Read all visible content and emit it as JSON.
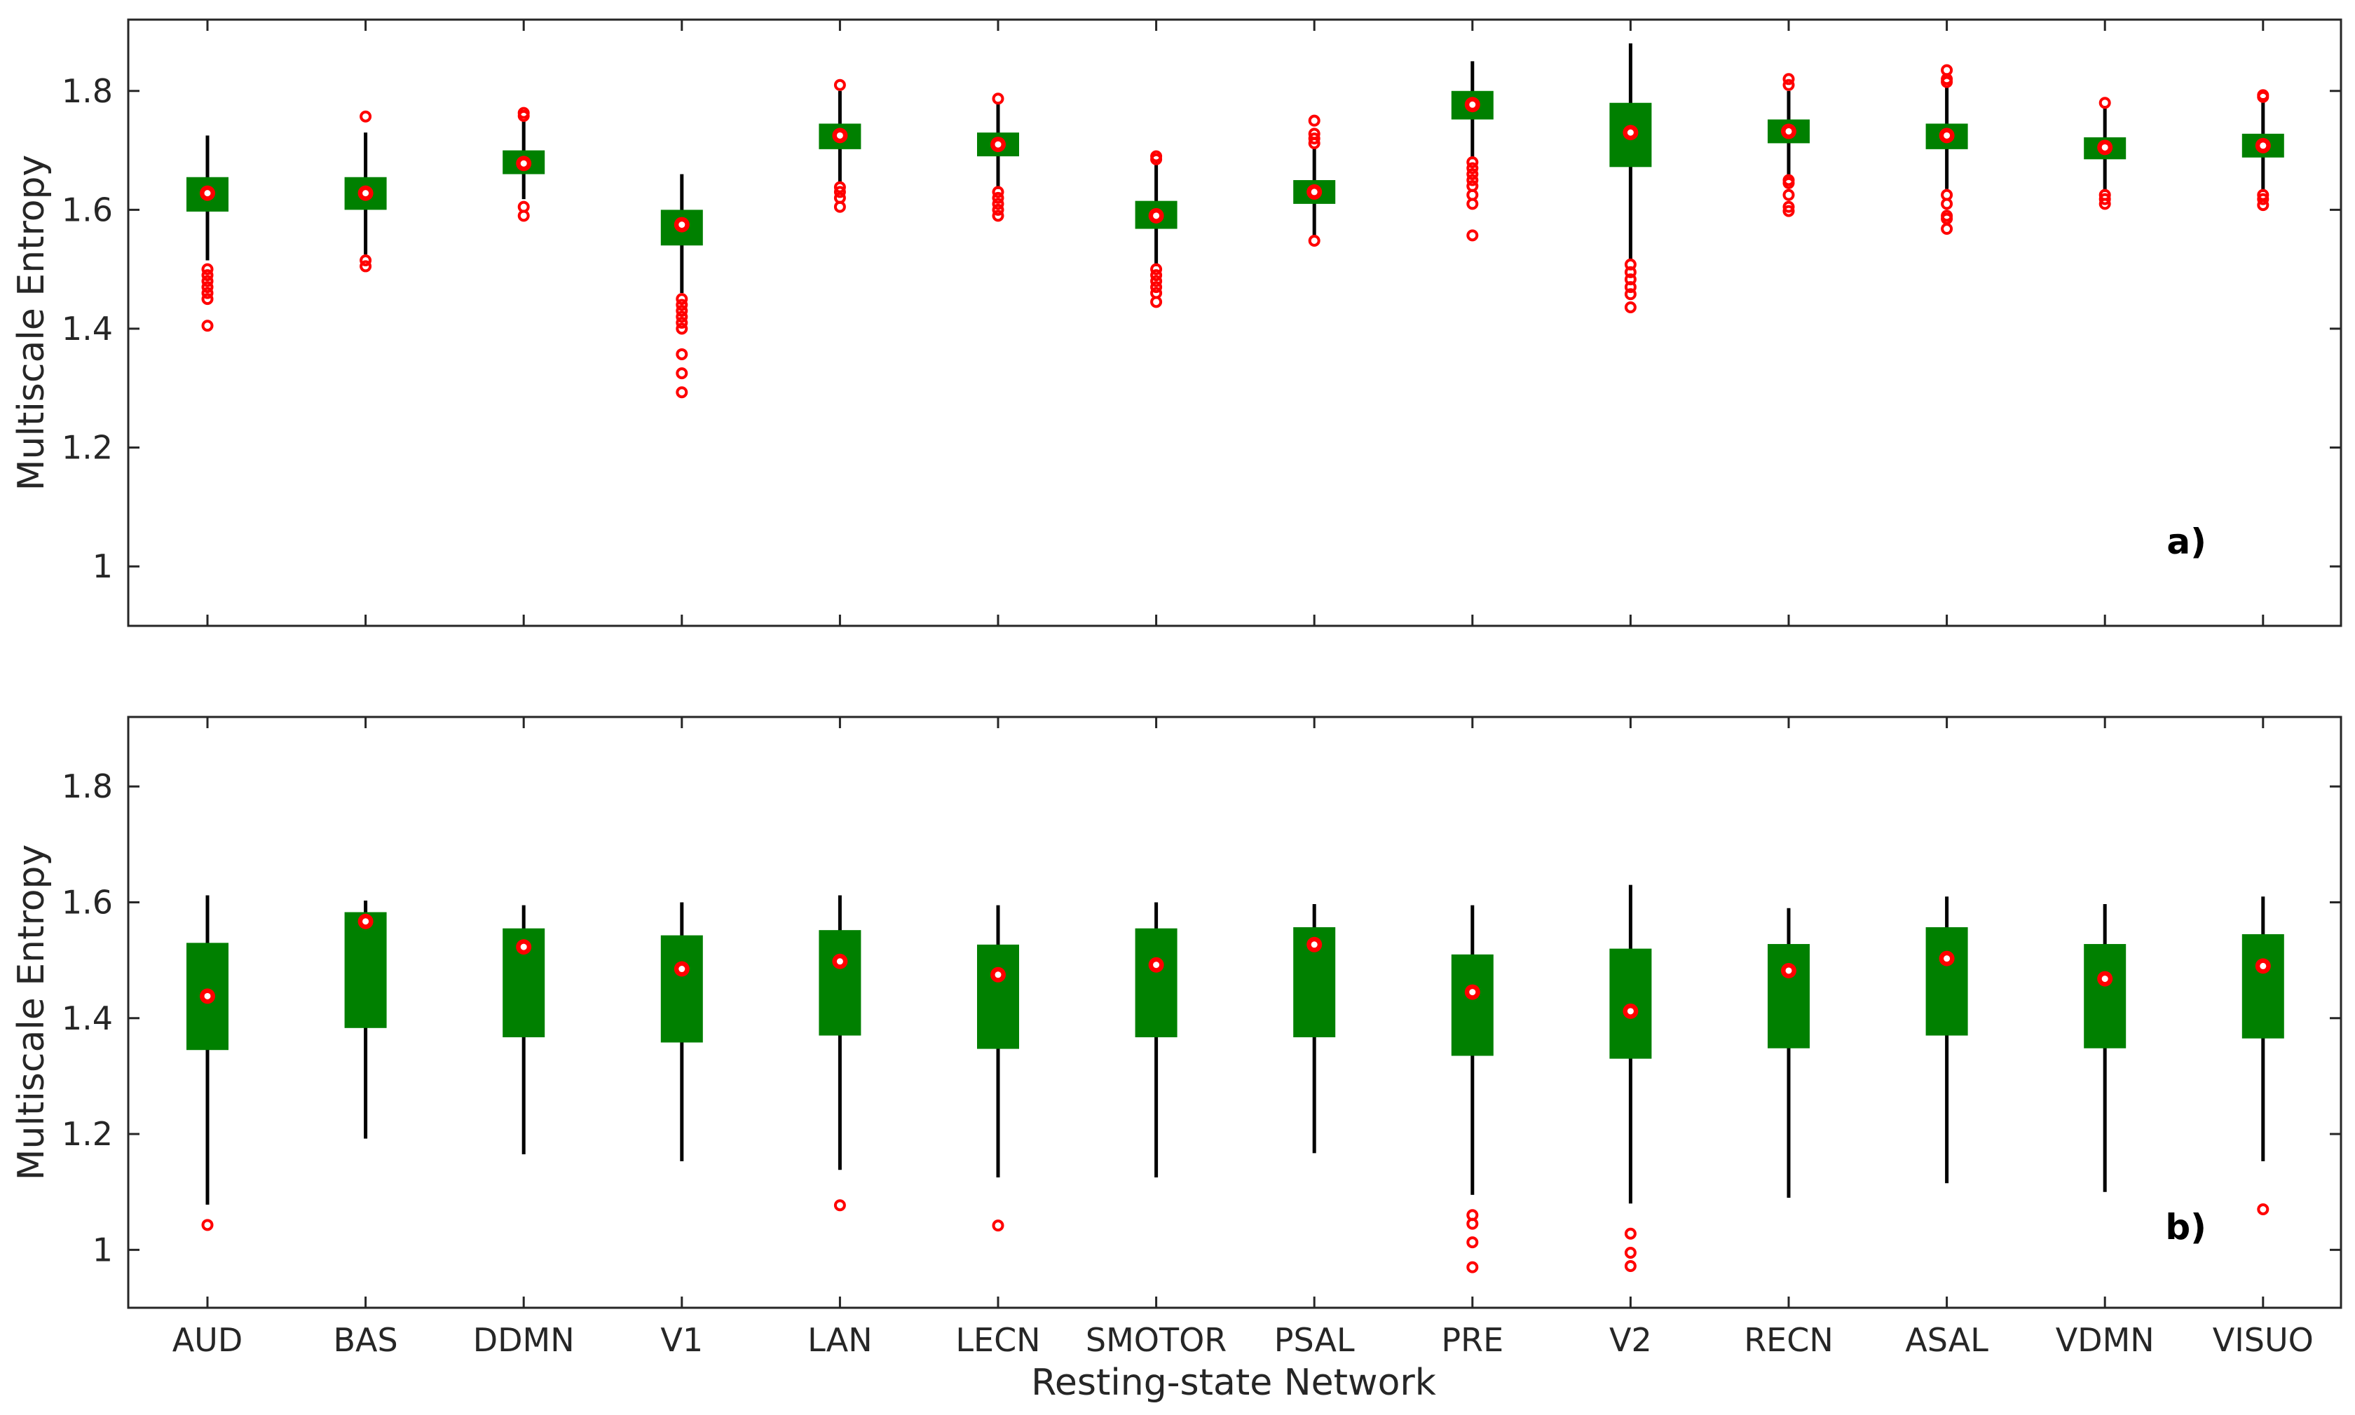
{
  "chart_data": {
    "type": "boxplot",
    "xlabel": "Resting-state Network",
    "ylabel": "Multiscale Entropy",
    "ylim": [
      0.9,
      1.92
    ],
    "yticks": [
      1,
      1.2,
      1.4,
      1.6,
      1.8
    ],
    "ytick_labels": [
      "1",
      "1.2",
      "1.4",
      "1.6",
      "1.8"
    ],
    "categories": [
      "AUD",
      "BAS",
      "DDMN",
      "V1",
      "LAN",
      "LECN",
      "SMOTOR",
      "PSAL",
      "PRE",
      "V2",
      "RECN",
      "ASAL",
      "VDMN",
      "VISUO"
    ],
    "colors": {
      "box": "#008000",
      "whisker": "#000000",
      "outlier": "#ff0000",
      "median_dot": "#ffffff"
    },
    "panels": [
      {
        "label": "a)",
        "boxes": [
          {
            "q1": 1.597,
            "q3": 1.655,
            "median": 1.628,
            "whisker_low": 1.515,
            "whisker_high": 1.725,
            "outliers": [
              1.5,
              1.49,
              1.48,
              1.47,
              1.46,
              1.45,
              1.405
            ]
          },
          {
            "q1": 1.6,
            "q3": 1.655,
            "median": 1.628,
            "whisker_low": 1.525,
            "whisker_high": 1.73,
            "outliers": [
              1.757,
              1.515,
              1.505
            ]
          },
          {
            "q1": 1.66,
            "q3": 1.7,
            "median": 1.678,
            "whisker_low": 1.618,
            "whisker_high": 1.75,
            "outliers": [
              1.763,
              1.758,
              1.605,
              1.59
            ]
          },
          {
            "q1": 1.54,
            "q3": 1.6,
            "median": 1.575,
            "whisker_low": 1.46,
            "whisker_high": 1.66,
            "outliers": [
              1.45,
              1.44,
              1.43,
              1.42,
              1.41,
              1.4,
              1.357,
              1.325,
              1.293
            ]
          },
          {
            "q1": 1.702,
            "q3": 1.745,
            "median": 1.725,
            "whisker_low": 1.645,
            "whisker_high": 1.8,
            "outliers": [
              1.81,
              1.638,
              1.63,
              1.62,
              1.605
            ]
          },
          {
            "q1": 1.69,
            "q3": 1.73,
            "median": 1.71,
            "whisker_low": 1.635,
            "whisker_high": 1.778,
            "outliers": [
              1.787,
              1.63,
              1.62,
              1.61,
              1.6,
              1.59
            ]
          },
          {
            "q1": 1.568,
            "q3": 1.615,
            "median": 1.59,
            "whisker_low": 1.505,
            "whisker_high": 1.68,
            "outliers": [
              1.69,
              1.685,
              1.5,
              1.49,
              1.48,
              1.47,
              1.46,
              1.445
            ]
          },
          {
            "q1": 1.61,
            "q3": 1.65,
            "median": 1.63,
            "whisker_low": 1.555,
            "whisker_high": 1.705,
            "outliers": [
              1.75,
              1.728,
              1.72,
              1.712,
              1.548
            ]
          },
          {
            "q1": 1.752,
            "q3": 1.8,
            "median": 1.777,
            "whisker_low": 1.685,
            "whisker_high": 1.85,
            "outliers": [
              1.68,
              1.67,
              1.66,
              1.65,
              1.64,
              1.625,
              1.61,
              1.557
            ]
          },
          {
            "q1": 1.672,
            "q3": 1.78,
            "median": 1.73,
            "whisker_low": 1.515,
            "whisker_high": 1.88,
            "outliers": [
              1.508,
              1.495,
              1.483,
              1.47,
              1.458,
              1.436
            ]
          },
          {
            "q1": 1.712,
            "q3": 1.752,
            "median": 1.732,
            "whisker_low": 1.655,
            "whisker_high": 1.8,
            "outliers": [
              1.82,
              1.81,
              1.65,
              1.645,
              1.625,
              1.605,
              1.598
            ]
          },
          {
            "q1": 1.702,
            "q3": 1.745,
            "median": 1.725,
            "whisker_low": 1.635,
            "whisker_high": 1.808,
            "outliers": [
              1.835,
              1.82,
              1.815,
              1.625,
              1.61,
              1.59,
              1.585,
              1.568
            ]
          },
          {
            "q1": 1.685,
            "q3": 1.722,
            "median": 1.705,
            "whisker_low": 1.63,
            "whisker_high": 1.775,
            "outliers": [
              1.78,
              1.625,
              1.618,
              1.61
            ]
          },
          {
            "q1": 1.688,
            "q3": 1.728,
            "median": 1.708,
            "whisker_low": 1.63,
            "whisker_high": 1.788,
            "outliers": [
              1.793,
              1.79,
              1.625,
              1.618,
              1.608
            ]
          }
        ]
      },
      {
        "label": "b)",
        "boxes": [
          {
            "q1": 1.345,
            "q3": 1.53,
            "median": 1.438,
            "whisker_low": 1.078,
            "whisker_high": 1.612,
            "outliers": [
              1.043
            ]
          },
          {
            "q1": 1.383,
            "q3": 1.583,
            "median": 1.567,
            "whisker_low": 1.192,
            "whisker_high": 1.603,
            "outliers": []
          },
          {
            "q1": 1.367,
            "q3": 1.555,
            "median": 1.523,
            "whisker_low": 1.165,
            "whisker_high": 1.595,
            "outliers": []
          },
          {
            "q1": 1.358,
            "q3": 1.543,
            "median": 1.485,
            "whisker_low": 1.153,
            "whisker_high": 1.6,
            "outliers": []
          },
          {
            "q1": 1.37,
            "q3": 1.552,
            "median": 1.498,
            "whisker_low": 1.138,
            "whisker_high": 1.612,
            "outliers": [
              1.077
            ]
          },
          {
            "q1": 1.347,
            "q3": 1.527,
            "median": 1.475,
            "whisker_low": 1.125,
            "whisker_high": 1.595,
            "outliers": [
              1.042
            ]
          },
          {
            "q1": 1.367,
            "q3": 1.555,
            "median": 1.492,
            "whisker_low": 1.125,
            "whisker_high": 1.6,
            "outliers": []
          },
          {
            "q1": 1.367,
            "q3": 1.557,
            "median": 1.527,
            "whisker_low": 1.167,
            "whisker_high": 1.597,
            "outliers": []
          },
          {
            "q1": 1.335,
            "q3": 1.51,
            "median": 1.445,
            "whisker_low": 1.095,
            "whisker_high": 1.595,
            "outliers": [
              1.06,
              1.045,
              1.013,
              0.97
            ]
          },
          {
            "q1": 1.33,
            "q3": 1.52,
            "median": 1.412,
            "whisker_low": 1.08,
            "whisker_high": 1.63,
            "outliers": [
              1.028,
              0.995,
              0.972
            ]
          },
          {
            "q1": 1.348,
            "q3": 1.528,
            "median": 1.482,
            "whisker_low": 1.09,
            "whisker_high": 1.59,
            "outliers": []
          },
          {
            "q1": 1.37,
            "q3": 1.557,
            "median": 1.503,
            "whisker_low": 1.115,
            "whisker_high": 1.61,
            "outliers": []
          },
          {
            "q1": 1.348,
            "q3": 1.528,
            "median": 1.468,
            "whisker_low": 1.1,
            "whisker_high": 1.597,
            "outliers": []
          },
          {
            "q1": 1.365,
            "q3": 1.545,
            "median": 1.49,
            "whisker_low": 1.153,
            "whisker_high": 1.61,
            "outliers": [
              1.07
            ]
          }
        ]
      }
    ]
  }
}
